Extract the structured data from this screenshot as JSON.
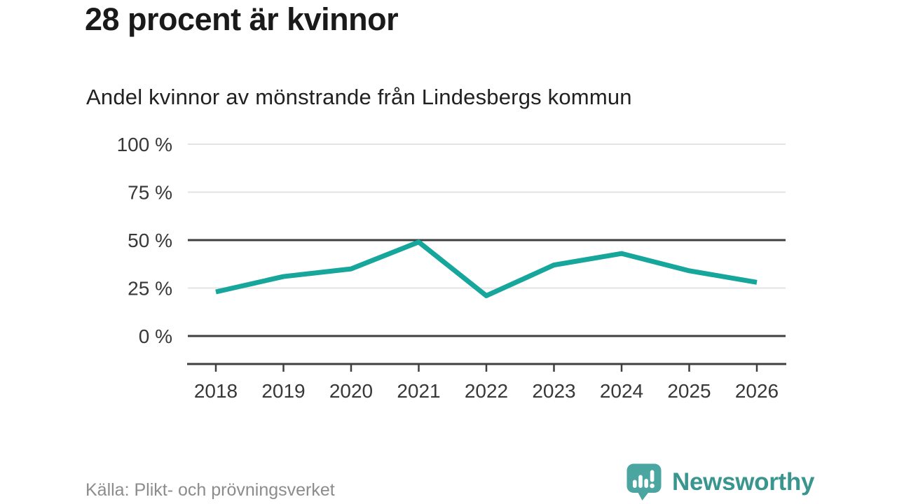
{
  "page": {
    "title": "28 procent är kvinnor",
    "subtitle": "Andel kvinnor av mönstrande från Lindesbergs kommun",
    "source": "Källa: Plikt- och prövningsverket",
    "brand": "Newsworthy"
  },
  "colors": {
    "line": "#17a69b",
    "grid_light": "#e3e3e3",
    "grid_dark": "#3f3f3f",
    "title_text": "#1a1a1a",
    "axis_text": "#383838",
    "source_text": "#8c8c8c",
    "brand_teal": "#39958e",
    "logo_bubble": "#4ba5a1"
  },
  "chart_data": {
    "type": "line",
    "title": "28 procent är kvinnor",
    "subtitle": "Andel kvinnor av mönstrande från Lindesbergs kommun",
    "categories": [
      "2018",
      "2019",
      "2020",
      "2021",
      "2022",
      "2023",
      "2024",
      "2025",
      "2026"
    ],
    "series": [
      {
        "name": "Andel kvinnor av mönstrande",
        "color": "#17a69b",
        "values": [
          23,
          31,
          35,
          49,
          21,
          37,
          43,
          34,
          28
        ]
      }
    ],
    "unit": "%",
    "xlabel": "",
    "ylabel": "",
    "ylim": [
      0,
      100
    ],
    "grid": true,
    "legend_position": "none",
    "yticks": [
      {
        "value": 100,
        "label": "100 %",
        "emphasis": false
      },
      {
        "value": 75,
        "label": "75 %",
        "emphasis": false
      },
      {
        "value": 50,
        "label": "50 %",
        "emphasis": true
      },
      {
        "value": 25,
        "label": "25 %",
        "emphasis": false
      },
      {
        "value": 0,
        "label": "0 %",
        "emphasis": true
      }
    ]
  }
}
